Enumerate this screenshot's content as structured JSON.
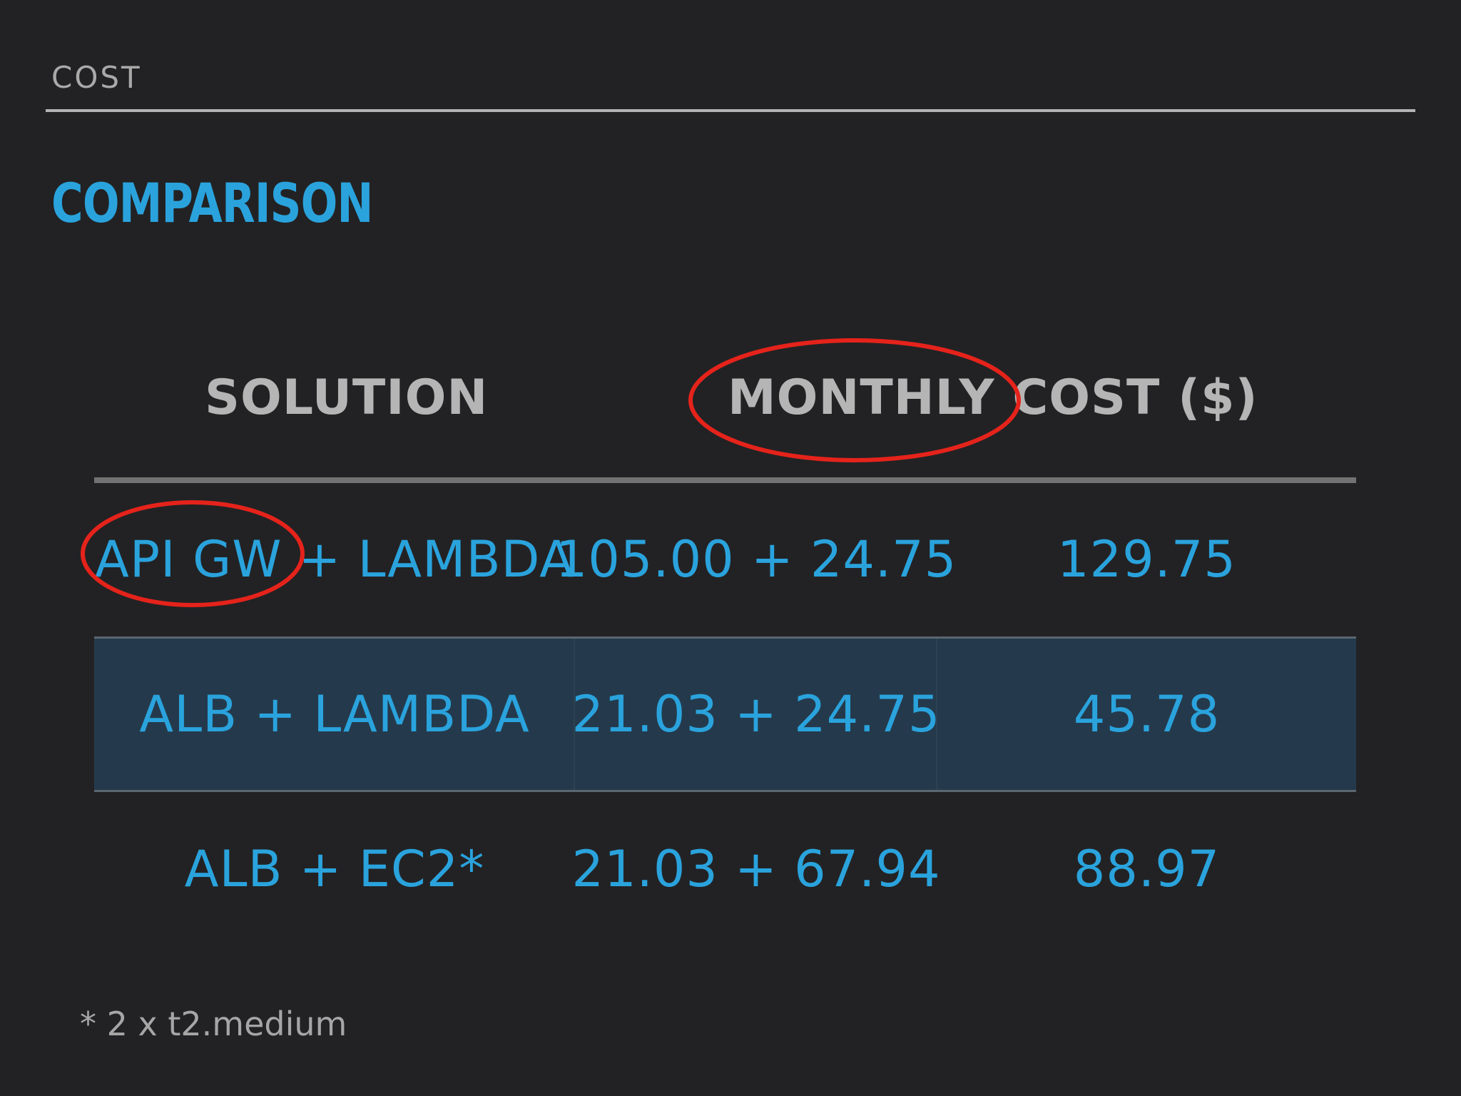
{
  "header": {
    "section_label": "COST",
    "title": "COMPARISON"
  },
  "table": {
    "columns": [
      "SOLUTION",
      "MONTHLY COST ($)"
    ],
    "rows": [
      {
        "solution": "API GW + LAMBDA",
        "breakdown": "105.00 + 24.75",
        "total": "129.75"
      },
      {
        "solution": "ALB + LAMBDA",
        "breakdown": "21.03 + 24.75",
        "total": "45.78"
      },
      {
        "solution": "ALB + EC2*",
        "breakdown": "21.03 + 67.94",
        "total": "88.97"
      }
    ]
  },
  "footnote": "* 2 x t2.medium",
  "colors": {
    "background": "#222224",
    "accent": "#2aa3dd",
    "highlight_row": "#243a4c",
    "annotation": "#e5231b"
  }
}
